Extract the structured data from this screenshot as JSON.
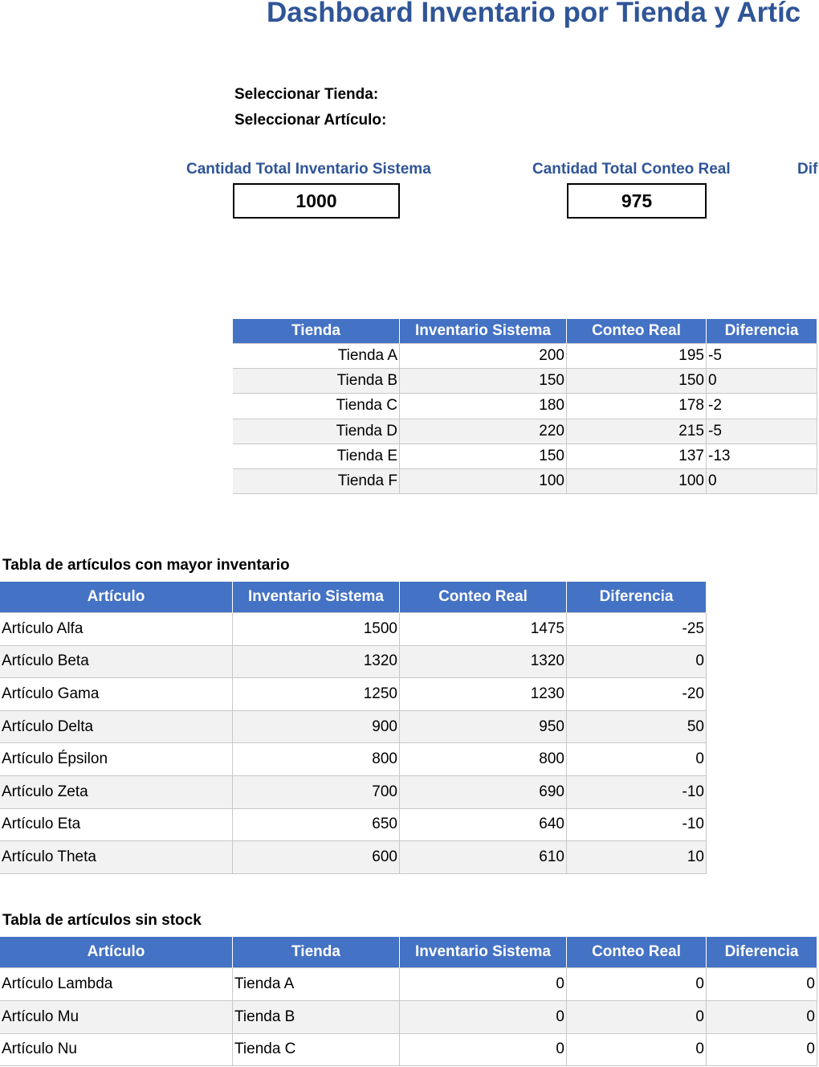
{
  "header": {
    "title": "Dashboard Inventario por Tienda y Artíc"
  },
  "filters": [
    "Seleccionar Tienda:",
    "Seleccionar Artículo:"
  ],
  "kpis": [
    {
      "label": "Cantidad Total Inventario Sistema",
      "value": 1000
    },
    {
      "label": "Cantidad Total Conteo Real",
      "value": 975
    },
    {
      "label": "Dif"
    }
  ],
  "store_table": {
    "columns": [
      "Tienda",
      "Inventario Sistema",
      "Conteo Real",
      "Diferencia"
    ],
    "rows": [
      [
        "Tienda A",
        200,
        195,
        -5
      ],
      [
        "Tienda B",
        150,
        150,
        0
      ],
      [
        "Tienda C",
        180,
        178,
        -2
      ],
      [
        "Tienda D",
        220,
        215,
        -5
      ],
      [
        "Tienda E",
        150,
        137,
        -13
      ],
      [
        "Tienda F",
        100,
        100,
        0
      ]
    ]
  },
  "top_items": {
    "title": "Tabla de artículos con mayor inventario",
    "columns": [
      "Artículo",
      "Inventario Sistema",
      "Conteo Real",
      "Diferencia"
    ],
    "rows": [
      [
        "Artículo Alfa",
        1500,
        1475,
        -25
      ],
      [
        "Artículo Beta",
        1320,
        1320,
        0
      ],
      [
        "Artículo Gama",
        1250,
        1230,
        -20
      ],
      [
        "Artículo Delta",
        900,
        950,
        50
      ],
      [
        "Artículo Épsilon",
        800,
        800,
        0
      ],
      [
        "Artículo Zeta",
        700,
        690,
        -10
      ],
      [
        "Artículo Eta",
        650,
        640,
        -10
      ],
      [
        "Artículo Theta",
        600,
        610,
        10
      ]
    ]
  },
  "no_stock": {
    "title": "Tabla de artículos sin stock",
    "columns": [
      "Artículo",
      "Tienda",
      "Inventario Sistema",
      "Conteo Real",
      "Diferencia"
    ],
    "rows": [
      [
        "Artículo Lambda",
        "Tienda A",
        0,
        0,
        0
      ],
      [
        "Artículo Mu",
        "Tienda B",
        0,
        0,
        0
      ],
      [
        "Artículo Nu",
        "Tienda C",
        0,
        0,
        0
      ]
    ]
  }
}
